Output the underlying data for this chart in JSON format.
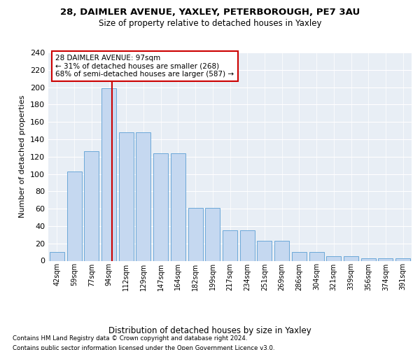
{
  "title1": "28, DAIMLER AVENUE, YAXLEY, PETERBOROUGH, PE7 3AU",
  "title2": "Size of property relative to detached houses in Yaxley",
  "xlabel": "Distribution of detached houses by size in Yaxley",
  "ylabel": "Number of detached properties",
  "footnote1": "Contains HM Land Registry data © Crown copyright and database right 2024.",
  "footnote2": "Contains public sector information licensed under the Open Government Licence v3.0.",
  "annotation_line1": "28 DAIMLER AVENUE: 97sqm",
  "annotation_line2": "← 31% of detached houses are smaller (268)",
  "annotation_line3": "68% of semi-detached houses are larger (587) →",
  "bar_color": "#c5d8f0",
  "bar_edge_color": "#5a9fd4",
  "vline_color": "#cc0000",
  "categories": [
    "42sqm",
    "59sqm",
    "77sqm",
    "94sqm",
    "112sqm",
    "129sqm",
    "147sqm",
    "164sqm",
    "182sqm",
    "199sqm",
    "217sqm",
    "234sqm",
    "251sqm",
    "269sqm",
    "286sqm",
    "304sqm",
    "321sqm",
    "339sqm",
    "356sqm",
    "374sqm",
    "391sqm"
  ],
  "values": [
    10,
    103,
    126,
    199,
    148,
    148,
    124,
    124,
    61,
    61,
    35,
    35,
    23,
    23,
    10,
    10,
    5,
    5,
    3,
    3,
    3
  ],
  "ylim": [
    0,
    240
  ],
  "yticks": [
    0,
    20,
    40,
    60,
    80,
    100,
    120,
    140,
    160,
    180,
    200,
    220,
    240
  ],
  "bg_color": "#e8eef5",
  "fig_bg": "#ffffff",
  "vline_x": 3.17
}
